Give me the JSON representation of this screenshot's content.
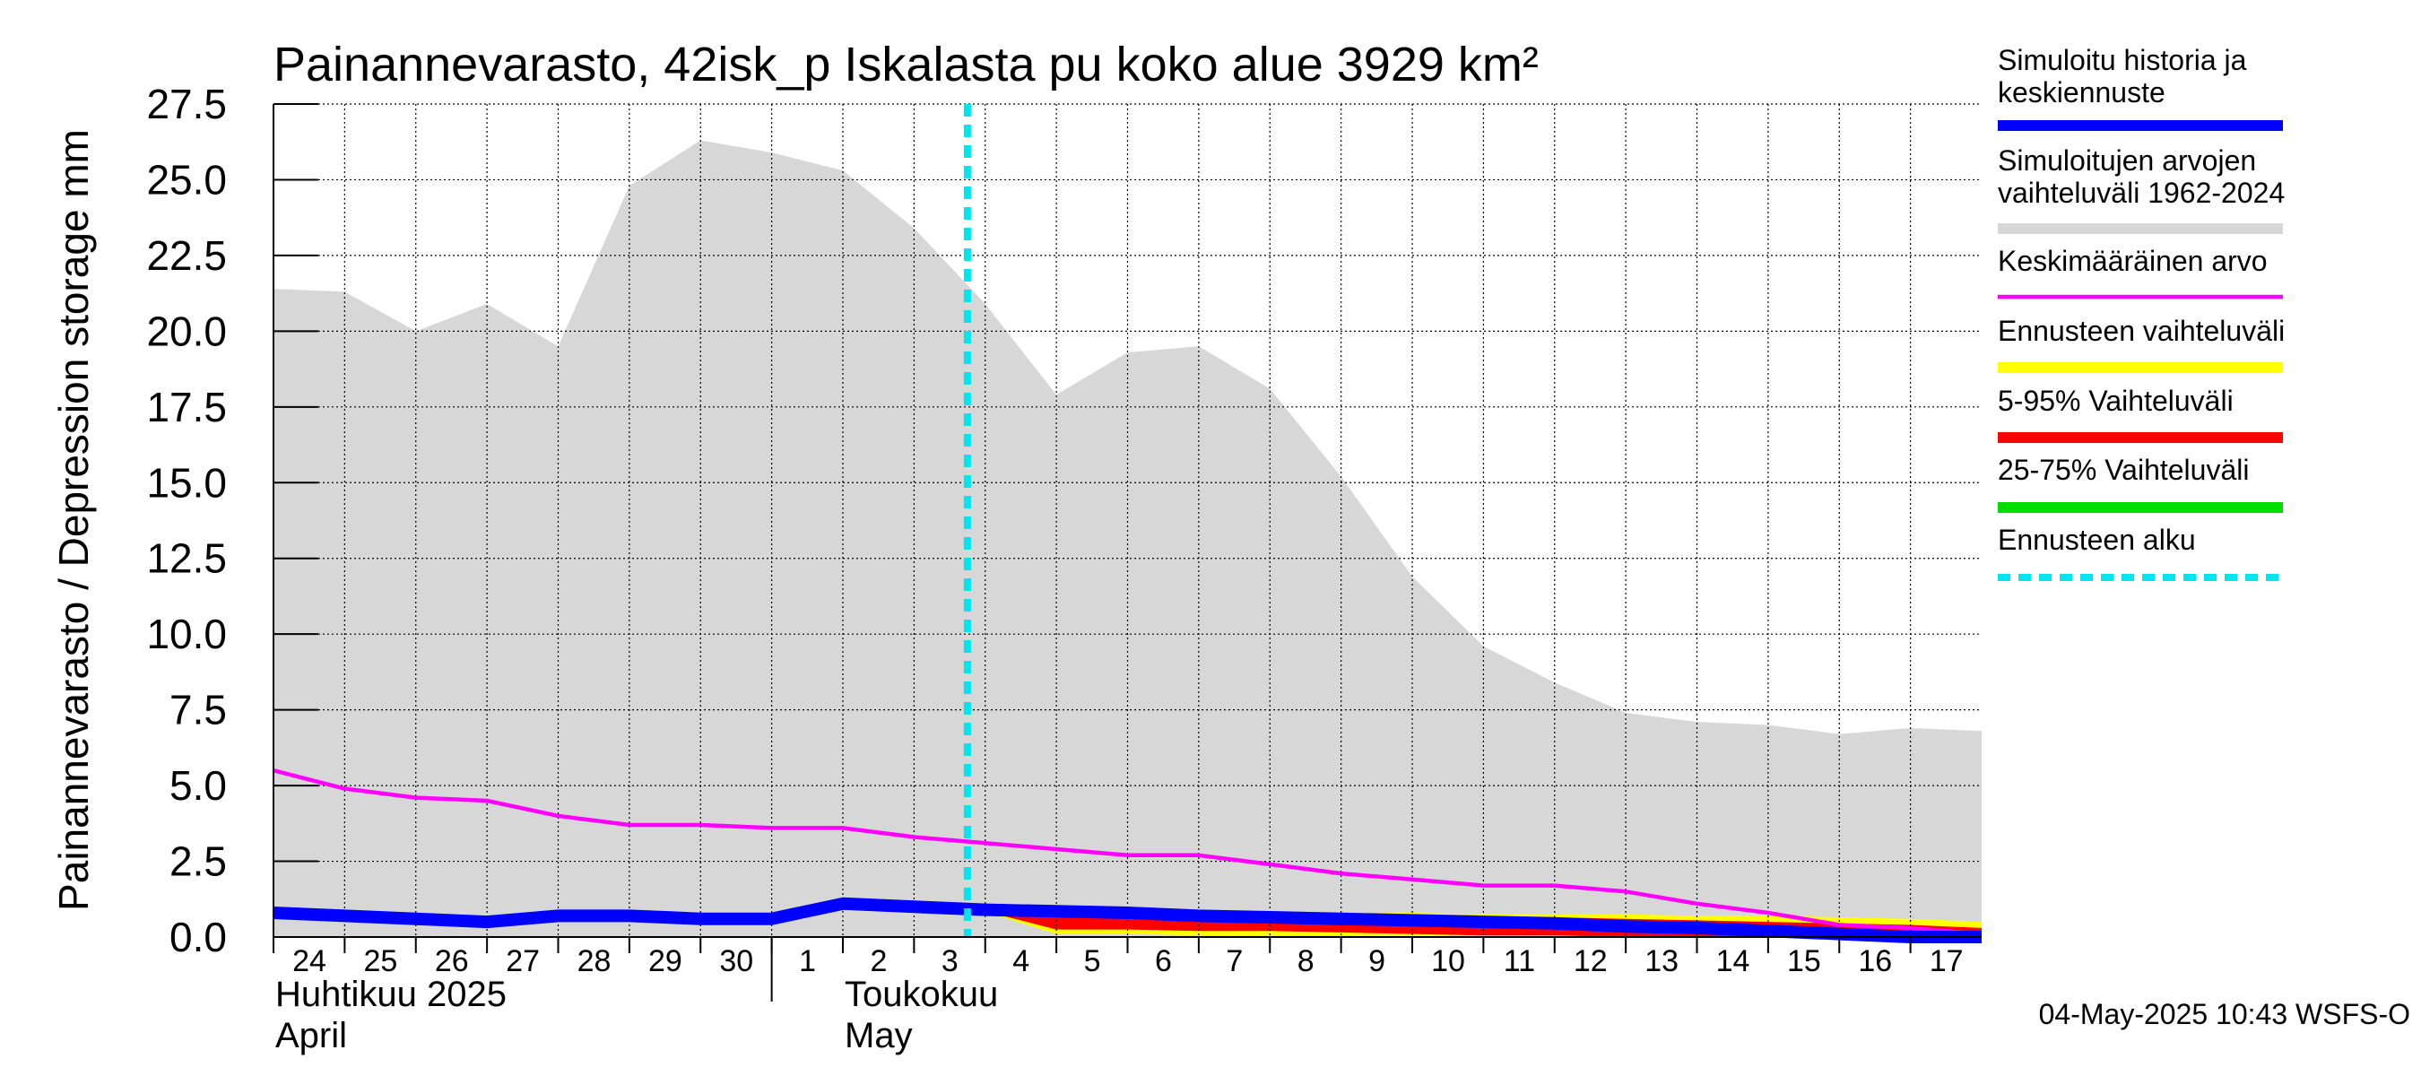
{
  "chart_data": {
    "type": "area",
    "title": "Painannevarasto, 42isk_p Iskalasta pu koko alue 3929 km²",
    "ylabel": "Painannevarasto / Depression storage    mm",
    "ylim": [
      0,
      27.5
    ],
    "yticks": [
      "0.0",
      "2.5",
      "5.0",
      "7.5",
      "10.0",
      "12.5",
      "15.0",
      "17.5",
      "20.0",
      "22.5",
      "25.0",
      "27.5"
    ],
    "xlim": [
      "2025-04-24",
      "2025-05-18"
    ],
    "x_tick_labels": [
      {
        "date": "2025-04-24",
        "label": "24"
      },
      {
        "date": "2025-04-25",
        "label": "25"
      },
      {
        "date": "2025-04-26",
        "label": "26"
      },
      {
        "date": "2025-04-27",
        "label": "27"
      },
      {
        "date": "2025-04-28",
        "label": "28"
      },
      {
        "date": "2025-04-29",
        "label": "29"
      },
      {
        "date": "2025-04-30",
        "label": "30"
      },
      {
        "date": "2025-05-01",
        "label": "1"
      },
      {
        "date": "2025-05-02",
        "label": "2"
      },
      {
        "date": "2025-05-03",
        "label": "3"
      },
      {
        "date": "2025-05-04",
        "label": "4"
      },
      {
        "date": "2025-05-05",
        "label": "5"
      },
      {
        "date": "2025-05-06",
        "label": "6"
      },
      {
        "date": "2025-05-07",
        "label": "7"
      },
      {
        "date": "2025-05-08",
        "label": "8"
      },
      {
        "date": "2025-05-09",
        "label": "9"
      },
      {
        "date": "2025-05-10",
        "label": "10"
      },
      {
        "date": "2025-05-11",
        "label": "11"
      },
      {
        "date": "2025-05-12",
        "label": "12"
      },
      {
        "date": "2025-05-13",
        "label": "13"
      },
      {
        "date": "2025-05-14",
        "label": "14"
      },
      {
        "date": "2025-05-15",
        "label": "15"
      },
      {
        "date": "2025-05-16",
        "label": "16"
      },
      {
        "date": "2025-05-17",
        "label": "17"
      }
    ],
    "month_labels": [
      {
        "date": "2025-04-24",
        "line1": "Huhtikuu  2025",
        "line2": "April"
      },
      {
        "date": "2025-05-02",
        "line1": "Toukokuu",
        "line2": "May"
      }
    ],
    "month_divider": "2025-05-01",
    "grid": true,
    "legend_position": "right",
    "forecast_start": "2025-05-03T18:00",
    "series": [
      {
        "name": "Simuloitujen arvojen vaihteluväli 1962-2024",
        "kind": "band",
        "color": "#d7d7d7",
        "x": [
          "2025-04-24",
          "2025-04-25",
          "2025-04-26",
          "2025-04-27",
          "2025-04-28",
          "2025-04-29",
          "2025-04-30",
          "2025-05-01",
          "2025-05-02",
          "2025-05-03",
          "2025-05-04",
          "2025-05-05",
          "2025-05-06",
          "2025-05-07",
          "2025-05-08",
          "2025-05-09",
          "2025-05-10",
          "2025-05-11",
          "2025-05-12",
          "2025-05-13",
          "2025-05-14",
          "2025-05-15",
          "2025-05-16",
          "2025-05-17",
          "2025-05-18"
        ],
        "upper": [
          21.4,
          21.3,
          20.0,
          20.9,
          19.5,
          24.8,
          26.3,
          25.9,
          25.3,
          23.4,
          20.9,
          17.9,
          19.3,
          19.5,
          18.1,
          15.2,
          11.9,
          9.6,
          8.4,
          7.4,
          7.1,
          7.0,
          6.7,
          6.9,
          6.8
        ],
        "lower": [
          0,
          0,
          0,
          0,
          0,
          0,
          0,
          0,
          0,
          0,
          0,
          0,
          0,
          0,
          0,
          0,
          0,
          0,
          0,
          0,
          0,
          0,
          0,
          0,
          0
        ]
      },
      {
        "name": "Ennusteen vaihteluväli",
        "kind": "band",
        "color": "#ffff00",
        "x": [
          "2025-05-03T18:00",
          "2025-05-05",
          "2025-05-06",
          "2025-05-07",
          "2025-05-08",
          "2025-05-09",
          "2025-05-10",
          "2025-05-11",
          "2025-05-12",
          "2025-05-13",
          "2025-05-14",
          "2025-05-15",
          "2025-05-16",
          "2025-05-17",
          "2025-05-18"
        ],
        "upper": [
          1.0,
          0.95,
          0.9,
          0.85,
          0.85,
          0.8,
          0.8,
          0.75,
          0.75,
          0.75,
          0.7,
          0.7,
          0.65,
          0.6,
          0.5
        ],
        "lower": [
          1.0,
          0.1,
          0.1,
          0.05,
          0.05,
          0.05,
          0.0,
          0.0,
          0.0,
          0.0,
          0.0,
          0.0,
          0.0,
          0.0,
          0.0
        ]
      },
      {
        "name": "5-95% Vaihteluväli",
        "kind": "band",
        "color": "#ff0000",
        "x": [
          "2025-05-03T18:00",
          "2025-05-05",
          "2025-05-06",
          "2025-05-07",
          "2025-05-08",
          "2025-05-09",
          "2025-05-10",
          "2025-05-11",
          "2025-05-12",
          "2025-05-13",
          "2025-05-14",
          "2025-05-15",
          "2025-05-16",
          "2025-05-17",
          "2025-05-18"
        ],
        "upper": [
          1.0,
          0.9,
          0.85,
          0.8,
          0.75,
          0.7,
          0.7,
          0.7,
          0.65,
          0.6,
          0.55,
          0.5,
          0.45,
          0.4,
          0.3
        ],
        "lower": [
          1.0,
          0.25,
          0.25,
          0.2,
          0.2,
          0.15,
          0.1,
          0.05,
          0.05,
          0.0,
          0.0,
          0.0,
          0.0,
          0.0,
          0.0
        ]
      },
      {
        "name": "25-75% Vaihteluväli",
        "kind": "band",
        "color": "#00dd00",
        "x": [
          "2025-05-03T18:00",
          "2025-05-05",
          "2025-05-06",
          "2025-05-07",
          "2025-05-08",
          "2025-05-09",
          "2025-05-10",
          "2025-05-11",
          "2025-05-12",
          "2025-05-13",
          "2025-05-14",
          "2025-05-15",
          "2025-05-16",
          "2025-05-17",
          "2025-05-18"
        ],
        "upper": [
          1.0,
          0.85,
          0.8,
          0.75,
          0.7,
          0.65,
          0.55,
          0.5,
          0.45,
          0.4,
          0.35,
          0.3,
          0.25,
          0.2,
          0.1
        ],
        "lower": [
          1.0,
          0.7,
          0.65,
          0.6,
          0.55,
          0.5,
          0.4,
          0.35,
          0.3,
          0.25,
          0.2,
          0.15,
          0.1,
          0.05,
          0.0
        ]
      },
      {
        "name": "Keskimääräinen arvo",
        "kind": "line",
        "color": "#ff00ff",
        "x": [
          "2025-04-24",
          "2025-04-25",
          "2025-04-26",
          "2025-04-27",
          "2025-04-28",
          "2025-04-29",
          "2025-04-30",
          "2025-05-01",
          "2025-05-02",
          "2025-05-03",
          "2025-05-04",
          "2025-05-05",
          "2025-05-06",
          "2025-05-07",
          "2025-05-08",
          "2025-05-09",
          "2025-05-10",
          "2025-05-11",
          "2025-05-12",
          "2025-05-13",
          "2025-05-14",
          "2025-05-15",
          "2025-05-16",
          "2025-05-17",
          "2025-05-18"
        ],
        "values": [
          5.5,
          4.9,
          4.6,
          4.5,
          4.0,
          3.7,
          3.7,
          3.6,
          3.6,
          3.3,
          3.1,
          2.9,
          2.7,
          2.7,
          2.4,
          2.1,
          1.9,
          1.7,
          1.7,
          1.5,
          1.1,
          0.8,
          0.4,
          0.3,
          0.1
        ]
      },
      {
        "name": "Simuloitu historia ja keskiennuste",
        "kind": "line",
        "color": "#0000ff",
        "x": [
          "2025-04-24",
          "2025-04-25",
          "2025-04-26",
          "2025-04-27",
          "2025-04-28",
          "2025-04-29",
          "2025-04-30",
          "2025-05-01",
          "2025-05-02",
          "2025-05-03",
          "2025-05-04",
          "2025-05-05",
          "2025-05-06",
          "2025-05-07",
          "2025-05-08",
          "2025-05-09",
          "2025-05-10",
          "2025-05-11",
          "2025-05-12",
          "2025-05-13",
          "2025-05-14",
          "2025-05-15",
          "2025-05-16",
          "2025-05-17",
          "2025-05-18"
        ],
        "values": [
          0.8,
          0.7,
          0.6,
          0.5,
          0.7,
          0.7,
          0.6,
          0.6,
          1.1,
          1.0,
          0.9,
          0.85,
          0.8,
          0.7,
          0.65,
          0.6,
          0.55,
          0.5,
          0.45,
          0.35,
          0.3,
          0.2,
          0.1,
          0.0,
          0.0
        ]
      }
    ],
    "legend": [
      {
        "label": "Simuloitu historia ja keskiennuste",
        "color": "#0000ff",
        "style": "thick"
      },
      {
        "label": "Simuloitujen arvojen vaihteluväli 1962-2024",
        "color": "#d7d7d7",
        "style": "thick"
      },
      {
        "label": "Keskimääräinen arvo",
        "color": "#ff00ff",
        "style": "thin"
      },
      {
        "label": "Ennusteen vaihteluväli",
        "color": "#ffff00",
        "style": "thick"
      },
      {
        "label": "5-95% Vaihteluväli",
        "color": "#ff0000",
        "style": "thick"
      },
      {
        "label": "25-75% Vaihteluväli",
        "color": "#00dd00",
        "style": "thick"
      },
      {
        "label": "Ennusteen alku",
        "color": "#00e5ee",
        "style": "dashed"
      }
    ],
    "footer": "04-May-2025 10:43 WSFS-O"
  }
}
